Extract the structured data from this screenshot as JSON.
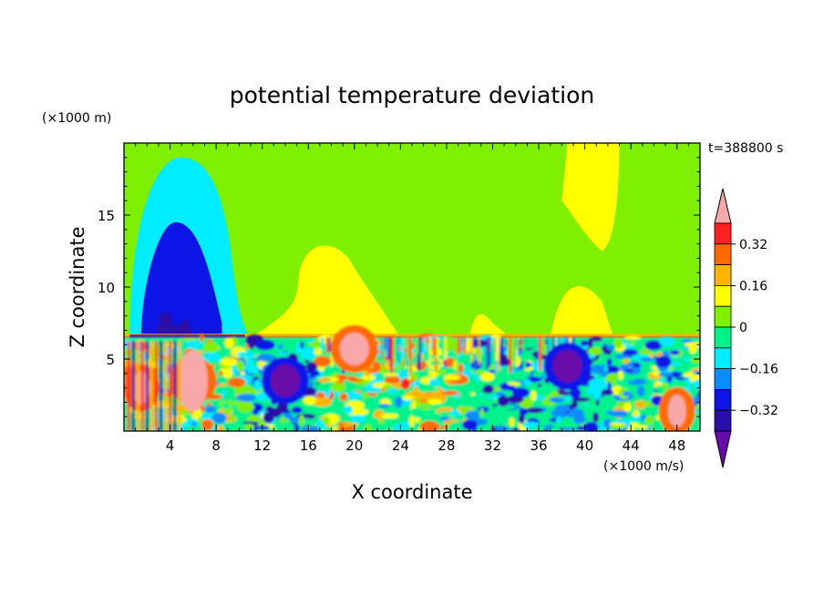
{
  "chart_data": {
    "type": "heatmap",
    "title": "potential temperature deviation",
    "xlabel": "X coordinate",
    "ylabel": "Z coordinate",
    "x_unit": "(×1000 m/s)",
    "y_unit": "(×1000 m)",
    "time_label": "t=388800 s",
    "xlim": [
      0,
      50
    ],
    "ylim": [
      0,
      20
    ],
    "x_ticks": [
      4,
      8,
      12,
      16,
      20,
      24,
      28,
      32,
      36,
      40,
      44,
      48
    ],
    "y_ticks": [
      5,
      10,
      15
    ],
    "colorbar": {
      "levels": [
        -0.48,
        -0.4,
        -0.32,
        -0.24,
        -0.16,
        -0.08,
        0,
        0.08,
        0.16,
        0.24,
        0.32,
        0.4
      ],
      "tick_labels": [
        "0.32",
        "0.16",
        "0",
        "−0.16",
        "−0.32"
      ],
      "tick_values": [
        0.32,
        0.16,
        0,
        -0.16,
        -0.32
      ],
      "colors": [
        "#6a0aa8",
        "#2a10a8",
        "#0c14e6",
        "#0a8cff",
        "#00ecff",
        "#00f28a",
        "#7ef000",
        "#ffff00",
        "#ffb400",
        "#ff6a00",
        "#ff2020",
        "#f8a8a8"
      ],
      "extend": "both"
    },
    "fields": {
      "inversion_height": 6.5,
      "upper_layer": [
        {
          "name": "cold dome",
          "x": [
            0.5,
            10.5
          ],
          "z_top": 19,
          "value": -0.12
        },
        {
          "name": "cold core",
          "x": [
            1.5,
            8.5
          ],
          "z_top": 14.5,
          "value": -0.26
        },
        {
          "name": "warm plume A",
          "x": [
            15,
            22
          ],
          "z_top": 13.2,
          "value": 0.14
        },
        {
          "name": "warm plume B",
          "x": [
            38,
            42.5
          ],
          "z_top": 20,
          "value": 0.14
        },
        {
          "name": "cool band C",
          "x": [
            45,
            50
          ],
          "z_top": 20,
          "value": 0.02
        }
      ],
      "lower_layer": [
        {
          "name": "warm cell left",
          "x": 1.5,
          "z": 3,
          "value": 0.42
        },
        {
          "name": "warm cell 6",
          "x": 6,
          "z": 3.5,
          "value": 0.42
        },
        {
          "name": "warm cell 20",
          "x": 20,
          "z": 5.7,
          "value": 0.42
        },
        {
          "name": "warm cell 48",
          "x": 48,
          "z": 1.4,
          "value": 0.42
        },
        {
          "name": "cold pocket 14",
          "x": 14,
          "z": 3.5,
          "value": -0.42
        },
        {
          "name": "cold pocket 38",
          "x": 38.5,
          "z": 4.5,
          "value": -0.42
        }
      ]
    }
  }
}
